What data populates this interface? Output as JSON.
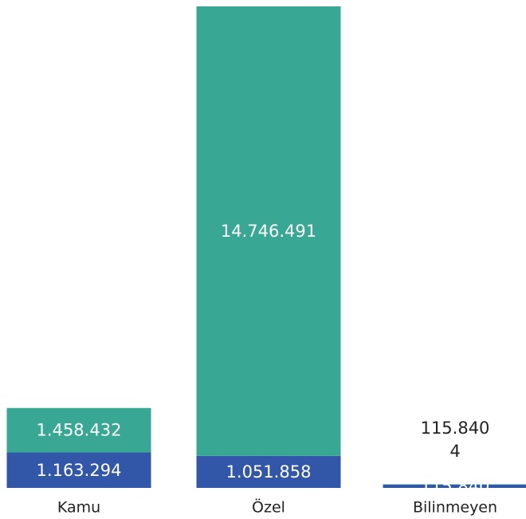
{
  "chart_data": {
    "type": "bar",
    "stacked": true,
    "categories": [
      "Kamu",
      "Özel",
      "Bilinmeyen"
    ],
    "series": [
      {
        "values": [
          1163294,
          1051858,
          115840
        ],
        "labels": [
          "1.163.294",
          "1.051.858",
          "115.840"
        ],
        "color": "#3256a8"
      },
      {
        "values": [
          1458432,
          14746491,
          4
        ],
        "labels": [
          "1.458.432",
          "14.746.491",
          "4"
        ],
        "color": "#38a794"
      }
    ],
    "title": "",
    "xlabel": "",
    "ylabel": "",
    "ylim": [
      0,
      15798349
    ],
    "grid": false,
    "legend": "none"
  }
}
